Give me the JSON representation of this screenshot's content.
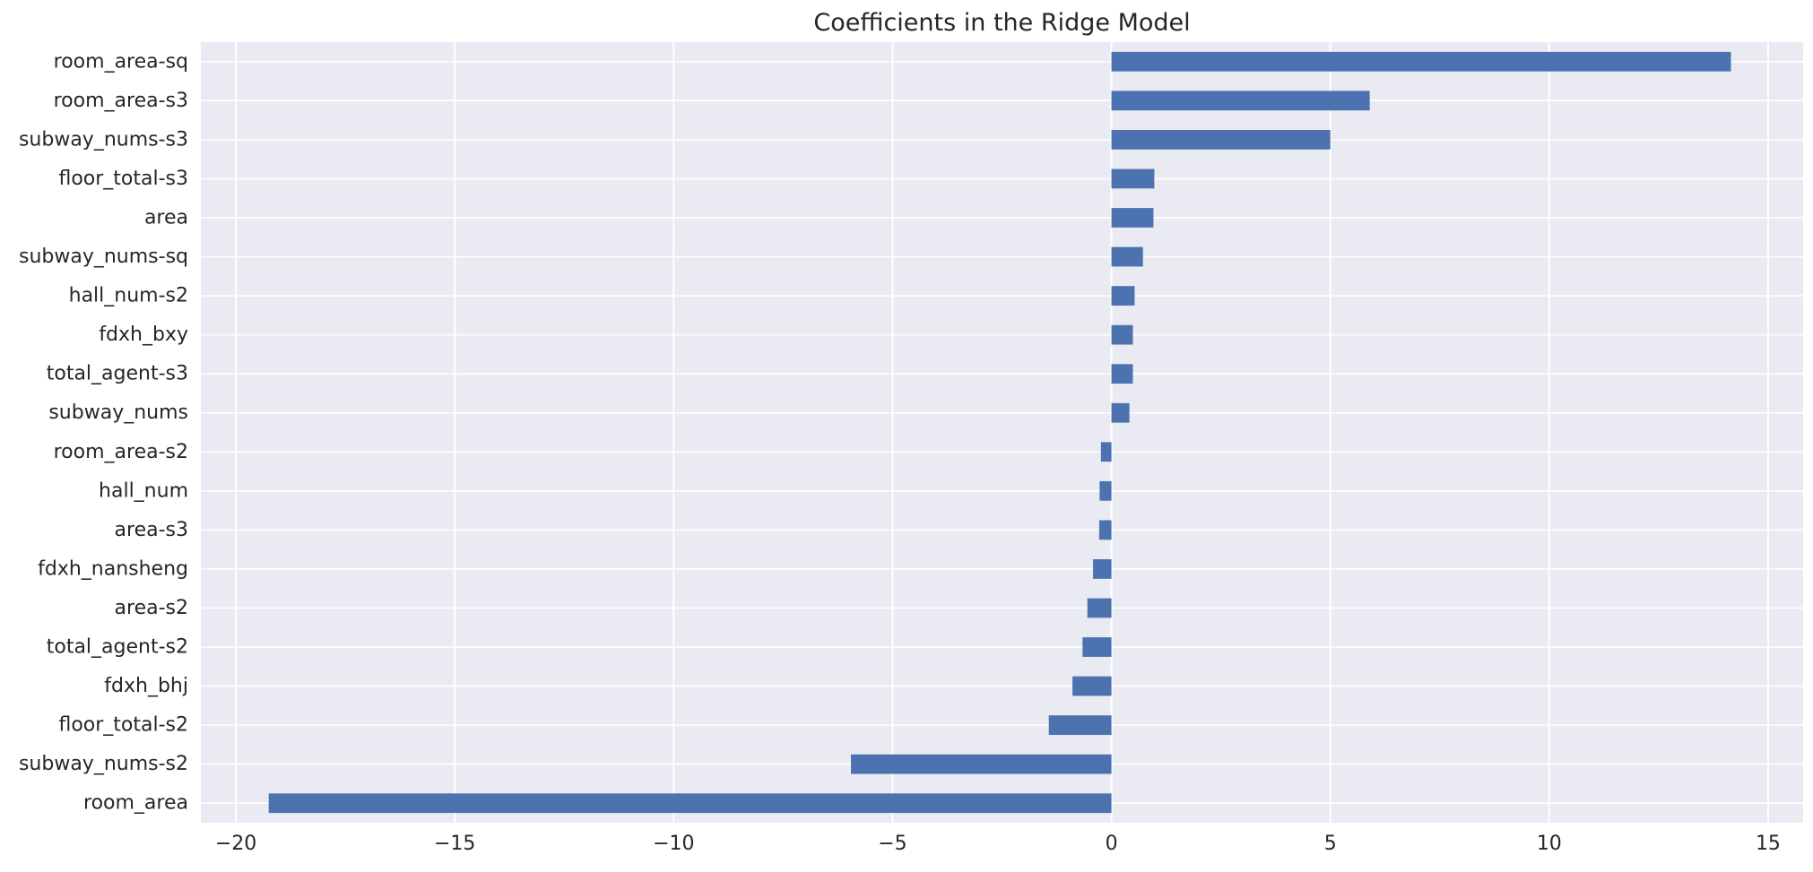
{
  "chart_data": {
    "type": "bar",
    "orientation": "horizontal",
    "title": "Coefficients in the Ridge Model",
    "xlabel": "",
    "ylabel": "",
    "xlim": [
      -20.8,
      15.8
    ],
    "xticks": [
      -20,
      -15,
      -10,
      -5,
      0,
      5,
      10,
      15
    ],
    "xtick_labels": [
      "−20",
      "−15",
      "−10",
      "−5",
      "0",
      "5",
      "10",
      "15"
    ],
    "grid": true,
    "legend": false,
    "style": "seaborn-darkgrid",
    "colors": {
      "bar": "#4c72b0",
      "plot_background": "#eaeaf2",
      "grid": "#ffffff",
      "text": "#262626"
    },
    "categories": [
      "room_area-sq",
      "room_area-s3",
      "subway_nums-s3",
      "floor_total-s3",
      "area",
      "subway_nums-sq",
      "hall_num-s2",
      "fdxh_bxy",
      "total_agent-s3",
      "subway_nums",
      "room_area-s2",
      "hall_num",
      "area-s3",
      "fdxh_nansheng",
      "area-s2",
      "total_agent-s2",
      "fdxh_bhj",
      "floor_total-s2",
      "subway_nums-s2",
      "room_area"
    ],
    "values": [
      14.15,
      5.9,
      5.0,
      0.98,
      0.96,
      0.72,
      0.53,
      0.49,
      0.49,
      0.41,
      -0.24,
      -0.27,
      -0.28,
      -0.42,
      -0.55,
      -0.66,
      -0.89,
      -1.43,
      -5.95,
      -19.25
    ]
  }
}
